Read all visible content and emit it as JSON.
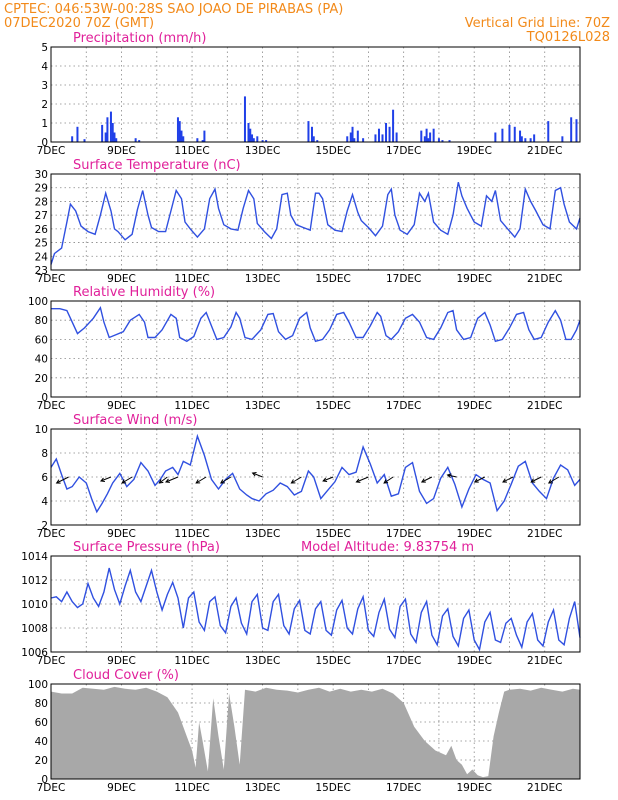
{
  "header": {
    "left1": "CPTEC:   046:53W-00:28S  SAO JOAO DE PIRABAS (PA)",
    "left2": "07DEC2020 70Z (GMT)",
    "right1": "Vertical Grid Line: 70Z",
    "right2": "TQ0126L028"
  },
  "x_days": [
    "7DEC",
    "9DEC",
    "11DEC",
    "13DEC",
    "15DEC",
    "17DEC",
    "19DEC",
    "21DEC"
  ],
  "colors": {
    "series": "#3050e0",
    "bars": "#2040e8",
    "cloud": "#a8a8a8",
    "title": "#e0209a",
    "header": "#f28a1a"
  },
  "chart_data": [
    {
      "type": "bar",
      "title": "Precipitation (mm/h)",
      "ylim": [
        0,
        5
      ],
      "yticks": [
        0,
        1,
        2,
        3,
        4,
        5
      ],
      "x": [
        0.6,
        0.75,
        0.95,
        1.45,
        1.55,
        1.6,
        1.7,
        1.75,
        1.8,
        1.85,
        2.4,
        2.5,
        3.6,
        3.65,
        3.7,
        3.75,
        4.15,
        4.3,
        4.35,
        5.5,
        5.6,
        5.65,
        5.7,
        5.75,
        5.85,
        6.0,
        6.1,
        7.3,
        7.4,
        7.45,
        7.55,
        8.4,
        8.5,
        8.55,
        8.6,
        8.7,
        8.85,
        9.2,
        9.3,
        9.4,
        9.5,
        9.6,
        9.7,
        9.8,
        10.5,
        10.6,
        10.65,
        10.7,
        10.75,
        10.85,
        11.0,
        11.1,
        11.3,
        12.6,
        12.8,
        13.0,
        13.15,
        13.3,
        13.35,
        13.45,
        13.6,
        13.7,
        14.1,
        14.5,
        14.75,
        14.9
      ],
      "values": [
        0.3,
        0.8,
        0.15,
        0.9,
        0.5,
        1.3,
        1.6,
        1.0,
        0.5,
        0.2,
        0.2,
        0.1,
        1.3,
        1.1,
        0.6,
        0.3,
        0.2,
        0.1,
        0.6,
        2.4,
        1.0,
        0.7,
        0.4,
        0.2,
        0.3,
        0.1,
        0.1,
        1.1,
        0.8,
        0.3,
        0.1,
        0.3,
        0.5,
        0.8,
        0.2,
        0.6,
        0.2,
        0.4,
        0.7,
        0.4,
        1.0,
        0.8,
        1.7,
        0.5,
        0.6,
        0.3,
        0.7,
        0.2,
        0.5,
        0.7,
        0.2,
        0.1,
        0.1,
        0.5,
        0.7,
        0.9,
        0.8,
        0.6,
        0.3,
        0.2,
        0.2,
        0.4,
        1.1,
        0.3,
        1.3,
        1.2
      ]
    },
    {
      "type": "line",
      "title": "Surface Temperature (nC)",
      "ylim": [
        23,
        30
      ],
      "yticks": [
        23,
        24,
        25,
        26,
        27,
        28,
        29,
        30
      ],
      "x": [
        0,
        0.1,
        0.3,
        0.45,
        0.55,
        0.7,
        0.85,
        1.05,
        1.25,
        1.4,
        1.55,
        1.7,
        1.8,
        1.9,
        2.1,
        2.3,
        2.45,
        2.6,
        2.75,
        2.85,
        3.05,
        3.25,
        3.4,
        3.55,
        3.7,
        3.8,
        3.95,
        4.15,
        4.35,
        4.5,
        4.65,
        4.75,
        4.9,
        5.1,
        5.3,
        5.45,
        5.6,
        5.75,
        5.85,
        6.05,
        6.25,
        6.4,
        6.55,
        6.7,
        6.8,
        6.95,
        7.15,
        7.35,
        7.5,
        7.6,
        7.7,
        7.85,
        8.05,
        8.25,
        8.4,
        8.55,
        8.7,
        8.8,
        9.0,
        9.2,
        9.4,
        9.55,
        9.65,
        9.75,
        9.9,
        10.1,
        10.3,
        10.45,
        10.6,
        10.7,
        10.85,
        11.05,
        11.25,
        11.4,
        11.55,
        11.65,
        11.8,
        12.0,
        12.2,
        12.35,
        12.5,
        12.6,
        12.75,
        12.95,
        13.15,
        13.3,
        13.45,
        13.6,
        13.75,
        13.95,
        14.15,
        14.3,
        14.45,
        14.55,
        14.7,
        14.9,
        15.0
      ],
      "values": [
        23.4,
        24.2,
        24.6,
        26.5,
        27.8,
        27.3,
        26.2,
        25.8,
        25.6,
        27.0,
        28.6,
        27.3,
        26.0,
        25.8,
        25.2,
        25.6,
        27.4,
        28.8,
        27.0,
        26.1,
        25.8,
        25.8,
        27.3,
        28.8,
        28.2,
        26.5,
        26.0,
        25.4,
        26.0,
        28.2,
        28.9,
        27.5,
        26.3,
        26.0,
        25.9,
        27.5,
        28.8,
        28.2,
        26.4,
        25.8,
        25.3,
        26.0,
        28.5,
        28.6,
        27.0,
        26.3,
        26.1,
        25.9,
        28.6,
        28.6,
        28.2,
        26.3,
        25.9,
        25.8,
        27.3,
        28.5,
        27.2,
        26.6,
        26.1,
        25.5,
        26.2,
        28.5,
        28.9,
        27.0,
        25.9,
        25.6,
        26.3,
        28.6,
        28.0,
        28.6,
        26.5,
        25.9,
        25.6,
        27.0,
        29.4,
        28.4,
        27.5,
        26.5,
        26.2,
        28.4,
        28.0,
        28.8,
        26.6,
        26.0,
        25.4,
        26.0,
        28.9,
        28.0,
        27.3,
        26.3,
        26.0,
        28.8,
        29.0,
        27.8,
        26.5,
        26.0,
        26.8
      ]
    },
    {
      "type": "line",
      "title": "Relative Humidity (%)",
      "ylim": [
        0,
        100
      ],
      "yticks": [
        0,
        20,
        40,
        60,
        80,
        100
      ],
      "x": [
        0,
        0.25,
        0.45,
        0.6,
        0.75,
        0.95,
        1.2,
        1.4,
        1.5,
        1.65,
        1.85,
        2.05,
        2.25,
        2.5,
        2.65,
        2.75,
        2.95,
        3.15,
        3.4,
        3.55,
        3.65,
        3.85,
        4.05,
        4.25,
        4.4,
        4.55,
        4.7,
        4.9,
        5.1,
        5.25,
        5.35,
        5.5,
        5.7,
        5.95,
        6.15,
        6.3,
        6.45,
        6.65,
        6.85,
        7.05,
        7.25,
        7.35,
        7.5,
        7.7,
        7.9,
        8.1,
        8.3,
        8.45,
        8.65,
        8.85,
        9.05,
        9.25,
        9.35,
        9.5,
        9.65,
        9.85,
        10.05,
        10.25,
        10.45,
        10.65,
        10.85,
        11.05,
        11.25,
        11.4,
        11.5,
        11.7,
        11.9,
        12.1,
        12.3,
        12.45,
        12.6,
        12.8,
        13.0,
        13.2,
        13.4,
        13.55,
        13.7,
        13.9,
        14.1,
        14.3,
        14.45,
        14.6,
        14.75,
        14.9,
        15.0
      ],
      "values": [
        92,
        92,
        90,
        78,
        66,
        72,
        82,
        93,
        78,
        62,
        65,
        68,
        80,
        86,
        78,
        62,
        62,
        70,
        86,
        82,
        62,
        58,
        63,
        82,
        88,
        74,
        60,
        62,
        73,
        88,
        82,
        62,
        60,
        70,
        86,
        87,
        68,
        60,
        64,
        82,
        88,
        72,
        58,
        60,
        70,
        86,
        88,
        78,
        62,
        62,
        74,
        88,
        84,
        64,
        60,
        68,
        82,
        86,
        78,
        62,
        60,
        72,
        88,
        90,
        70,
        60,
        62,
        82,
        88,
        75,
        58,
        60,
        72,
        86,
        88,
        70,
        60,
        62,
        78,
        90,
        80,
        60,
        60,
        70,
        80
      ]
    },
    {
      "type": "line",
      "title": "Surface Wind (m/s)",
      "ylim": [
        2,
        10
      ],
      "yticks": [
        2,
        4,
        6,
        8,
        10
      ],
      "x": [
        0,
        0.15,
        0.3,
        0.45,
        0.6,
        0.8,
        1.0,
        1.15,
        1.3,
        1.45,
        1.6,
        1.75,
        1.95,
        2.15,
        2.35,
        2.55,
        2.75,
        2.95,
        3.1,
        3.25,
        3.45,
        3.6,
        3.75,
        3.95,
        4.15,
        4.35,
        4.55,
        4.75,
        4.95,
        5.15,
        5.35,
        5.55,
        5.7,
        5.9,
        6.1,
        6.3,
        6.5,
        6.7,
        6.9,
        7.1,
        7.3,
        7.45,
        7.65,
        7.85,
        8.05,
        8.25,
        8.45,
        8.65,
        8.85,
        9.05,
        9.25,
        9.45,
        9.65,
        9.85,
        10.05,
        10.25,
        10.45,
        10.65,
        10.85,
        11.05,
        11.25,
        11.45,
        11.65,
        11.85,
        12.05,
        12.25,
        12.45,
        12.65,
        12.85,
        13.05,
        13.25,
        13.45,
        13.65,
        13.85,
        14.05,
        14.25,
        14.45,
        14.65,
        14.85,
        15.0
      ],
      "values": [
        6.8,
        7.5,
        6.2,
        5.0,
        5.2,
        6.0,
        5.5,
        4.2,
        3.1,
        3.8,
        4.6,
        5.5,
        6.3,
        5.2,
        5.8,
        7.2,
        6.5,
        5.3,
        5.8,
        6.5,
        6.8,
        6.2,
        7.3,
        7.0,
        9.4,
        7.8,
        5.8,
        5.0,
        5.8,
        6.3,
        5.0,
        4.5,
        4.2,
        4.0,
        4.6,
        4.9,
        5.5,
        5.2,
        4.5,
        4.8,
        6.5,
        6.0,
        4.2,
        4.9,
        5.6,
        6.8,
        6.2,
        6.4,
        8.5,
        7.1,
        5.5,
        6.2,
        4.4,
        4.6,
        6.8,
        7.2,
        4.8,
        3.8,
        4.2,
        5.9,
        6.8,
        5.4,
        3.5,
        5.0,
        6.2,
        5.8,
        5.5,
        3.2,
        4.0,
        5.4,
        6.9,
        7.3,
        5.5,
        4.8,
        4.2,
        5.9,
        7.0,
        6.6,
        5.3,
        5.8
      ]
    },
    {
      "type": "line",
      "title": "Surface Pressure (hPa)",
      "subtitle": "Model Altitude: 9.83754 m",
      "ylim": [
        1006,
        1014
      ],
      "yticks": [
        1006,
        1008,
        1010,
        1012,
        1014
      ],
      "x": [
        0,
        0.15,
        0.3,
        0.45,
        0.6,
        0.75,
        0.9,
        1.05,
        1.2,
        1.35,
        1.5,
        1.65,
        1.8,
        1.95,
        2.1,
        2.25,
        2.4,
        2.55,
        2.7,
        2.85,
        3.0,
        3.15,
        3.3,
        3.45,
        3.6,
        3.75,
        3.9,
        4.05,
        4.2,
        4.35,
        4.5,
        4.65,
        4.8,
        4.95,
        5.1,
        5.25,
        5.4,
        5.55,
        5.7,
        5.85,
        6.0,
        6.15,
        6.3,
        6.45,
        6.6,
        6.75,
        6.9,
        7.05,
        7.2,
        7.35,
        7.5,
        7.65,
        7.8,
        7.95,
        8.1,
        8.25,
        8.4,
        8.55,
        8.7,
        8.85,
        9.0,
        9.15,
        9.3,
        9.45,
        9.6,
        9.75,
        9.9,
        10.05,
        10.2,
        10.35,
        10.5,
        10.65,
        10.8,
        10.95,
        11.1,
        11.25,
        11.4,
        11.55,
        11.7,
        11.85,
        12.0,
        12.15,
        12.3,
        12.45,
        12.6,
        12.75,
        12.9,
        13.05,
        13.2,
        13.35,
        13.5,
        13.65,
        13.8,
        13.95,
        14.1,
        14.25,
        14.4,
        14.55,
        14.7,
        14.85,
        15.0
      ],
      "values": [
        1010.5,
        1010.6,
        1010.2,
        1011.0,
        1010.2,
        1009.7,
        1010.0,
        1011.7,
        1010.5,
        1009.8,
        1011.0,
        1013.0,
        1011.2,
        1010.0,
        1011.5,
        1012.8,
        1011.0,
        1010.2,
        1011.5,
        1012.8,
        1011.0,
        1009.5,
        1010.8,
        1011.8,
        1010.5,
        1008.0,
        1010.5,
        1011.0,
        1008.5,
        1007.8,
        1010.2,
        1010.6,
        1008.2,
        1007.6,
        1009.8,
        1010.5,
        1008.4,
        1007.5,
        1010.2,
        1010.8,
        1008.0,
        1007.8,
        1010.2,
        1010.8,
        1008.2,
        1007.5,
        1009.6,
        1010.3,
        1007.8,
        1007.5,
        1009.6,
        1010.2,
        1007.8,
        1007.4,
        1009.5,
        1010.3,
        1008.0,
        1007.5,
        1009.6,
        1010.6,
        1007.8,
        1007.3,
        1009.3,
        1010.4,
        1007.9,
        1007.2,
        1009.8,
        1010.4,
        1007.5,
        1006.8,
        1009.3,
        1010.2,
        1007.4,
        1006.6,
        1009.0,
        1009.6,
        1007.3,
        1006.5,
        1008.8,
        1009.5,
        1007.0,
        1006.2,
        1008.5,
        1009.3,
        1007.0,
        1006.8,
        1008.4,
        1008.8,
        1007.4,
        1006.4,
        1008.5,
        1009.2,
        1007.0,
        1006.5,
        1008.5,
        1009.5,
        1007.0,
        1006.6,
        1008.8,
        1010.2,
        1007.2
      ]
    },
    {
      "type": "area",
      "title": "Cloud Cover (%)",
      "ylim": [
        0,
        100
      ],
      "yticks": [
        0,
        20,
        40,
        60,
        80,
        100
      ],
      "x": [
        0,
        0.3,
        0.6,
        0.9,
        1.2,
        1.5,
        1.8,
        2.1,
        2.4,
        2.7,
        3.0,
        3.3,
        3.6,
        3.9,
        4.0,
        4.1,
        4.2,
        4.3,
        4.45,
        4.6,
        4.75,
        4.9,
        5.05,
        5.2,
        5.35,
        5.5,
        5.8,
        6.1,
        6.4,
        6.7,
        7.0,
        7.3,
        7.6,
        7.9,
        8.2,
        8.5,
        8.8,
        9.1,
        9.4,
        9.7,
        10.0,
        10.3,
        10.6,
        10.9,
        11.2,
        11.35,
        11.5,
        11.65,
        11.8,
        11.95,
        12.1,
        12.25,
        12.4,
        12.55,
        12.7,
        12.85,
        13.0,
        13.3,
        13.6,
        13.9,
        14.2,
        14.5,
        14.8,
        15.0
      ],
      "values": [
        92,
        90,
        90,
        96,
        95,
        94,
        97,
        95,
        94,
        96,
        92,
        86,
        70,
        40,
        30,
        12,
        60,
        40,
        8,
        85,
        45,
        10,
        90,
        55,
        15,
        94,
        92,
        96,
        94,
        93,
        91,
        94,
        96,
        92,
        95,
        92,
        94,
        92,
        95,
        90,
        80,
        55,
        40,
        30,
        25,
        35,
        20,
        15,
        5,
        10,
        4,
        2,
        3,
        45,
        70,
        92,
        94,
        95,
        93,
        96,
        94,
        92,
        95,
        94
      ]
    }
  ]
}
